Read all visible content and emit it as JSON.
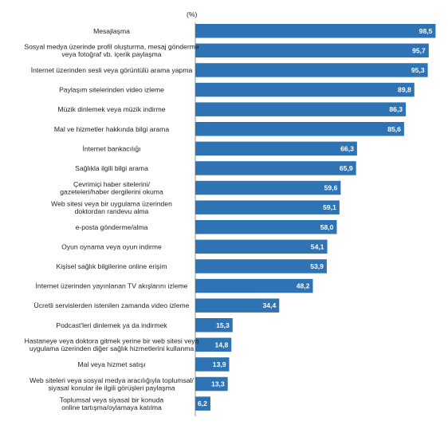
{
  "chart_data": {
    "type": "bar",
    "orientation": "horizontal",
    "unit_label": "(%)",
    "bar_color": "#2e74b5",
    "axis_color": "#999999",
    "categories": [
      [
        "Mesajlaşma"
      ],
      [
        "Sosyal medya üzerinde profil oluşturma, mesaj gönderme",
        "veya fotoğraf vb. içerik paylaşma"
      ],
      [
        "İnternet üzerinden sesli veya görüntülü arama yapma"
      ],
      [
        "Paylaşım sitelerinden video izleme"
      ],
      [
        "Müzik dinlemek veya müzik indirme"
      ],
      [
        "Mal ve hizmetler hakkında bilgi arama"
      ],
      [
        "İnternet bankacılığı"
      ],
      [
        "Sağlıkla ilgili bilgi arama"
      ],
      [
        "Çevrimiçi haber sitelerini/",
        "gazeteleri/haber dergilerini okuma"
      ],
      [
        "Web sitesi veya bir uygulama üzerinden",
        "doktordan randevu alma"
      ],
      [
        "e-posta gönderme/alma"
      ],
      [
        "Oyun oynama veya oyun indirme"
      ],
      [
        "Kişisel sağlık bilgilerine online erişim"
      ],
      [
        "İnternet üzerinden yayınlanan TV akışlarını izleme"
      ],
      [
        "Ücretli servislerden istenilen zamanda video izleme"
      ],
      [
        "Podcast'leri dinlemek ya da indirmek"
      ],
      [
        "Hastaneye veya doktora gitmek yerine bir web sitesi veya",
        "uygulama üzerinden diğer sağlık hizmetlerini kullanma"
      ],
      [
        "Mal veya hizmet satışı"
      ],
      [
        "Web siteleri veya sosyal medya aracılığıyla toplumsal/",
        "siyasal konular ile ilgili görüşleri paylaşma"
      ],
      [
        "Toplumsal veya siyasal bir konuda",
        "online tartışma/oylamaya katılma"
      ]
    ],
    "values": [
      98.5,
      95.7,
      95.3,
      89.8,
      86.3,
      85.6,
      66.3,
      65.9,
      59.6,
      59.1,
      58.0,
      54.1,
      53.9,
      48.2,
      34.4,
      15.3,
      14.8,
      13.9,
      13.3,
      6.2
    ],
    "value_labels": [
      "98,5",
      "95,7",
      "95,3",
      "89,8",
      "86,3",
      "85,6",
      "66,3",
      "65,9",
      "59,6",
      "59,1",
      "58,0",
      "54,1",
      "53,9",
      "48,2",
      "34,4",
      "15,3",
      "14,8",
      "13,9",
      "13,3",
      "6,2"
    ],
    "xlim": [
      0,
      100
    ],
    "grid": false,
    "legend": "none"
  }
}
